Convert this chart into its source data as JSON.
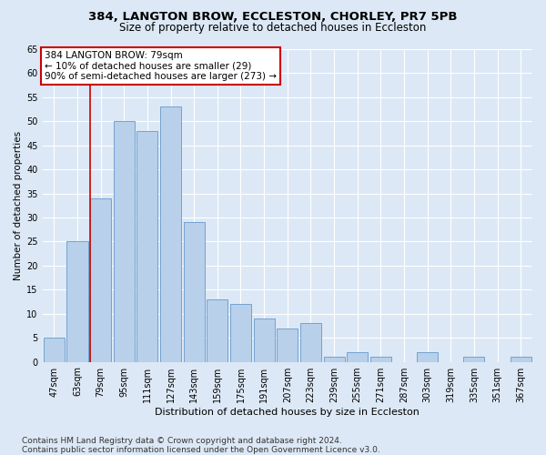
{
  "title1": "384, LANGTON BROW, ECCLESTON, CHORLEY, PR7 5PB",
  "title2": "Size of property relative to detached houses in Eccleston",
  "xlabel": "Distribution of detached houses by size in Eccleston",
  "ylabel": "Number of detached properties",
  "categories": [
    "47sqm",
    "63sqm",
    "79sqm",
    "95sqm",
    "111sqm",
    "127sqm",
    "143sqm",
    "159sqm",
    "175sqm",
    "191sqm",
    "207sqm",
    "223sqm",
    "239sqm",
    "255sqm",
    "271sqm",
    "287sqm",
    "303sqm",
    "319sqm",
    "335sqm",
    "351sqm",
    "367sqm"
  ],
  "values": [
    5,
    25,
    34,
    50,
    48,
    53,
    29,
    13,
    12,
    9,
    7,
    8,
    1,
    2,
    1,
    0,
    2,
    0,
    1,
    0,
    1
  ],
  "bar_color": "#b8d0ea",
  "bar_edge_color": "#6699cc",
  "vline_index": 2,
  "vline_color": "#cc0000",
  "annotation_line1": "384 LANGTON BROW: 79sqm",
  "annotation_line2": "← 10% of detached houses are smaller (29)",
  "annotation_line3": "90% of semi-detached houses are larger (273) →",
  "annotation_box_facecolor": "#ffffff",
  "annotation_box_edgecolor": "#cc0000",
  "ylim": [
    0,
    65
  ],
  "yticks": [
    0,
    5,
    10,
    15,
    20,
    25,
    30,
    35,
    40,
    45,
    50,
    55,
    60,
    65
  ],
  "footer": "Contains HM Land Registry data © Crown copyright and database right 2024.\nContains public sector information licensed under the Open Government Licence v3.0.",
  "fig_bg": "#dce8f5",
  "plot_bg": "#dce8f5",
  "title1_fontsize": 9.5,
  "title2_fontsize": 8.5,
  "ylabel_fontsize": 7.5,
  "xlabel_fontsize": 8,
  "tick_fontsize": 7,
  "annot_fontsize": 7.5,
  "footer_fontsize": 6.5
}
